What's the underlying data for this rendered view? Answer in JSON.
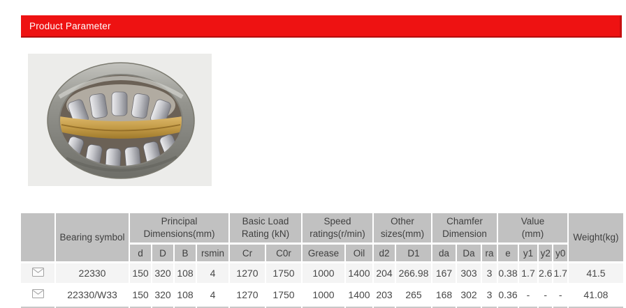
{
  "header": {
    "title": "Product Parameter"
  },
  "colors": {
    "accent_red": "#ee1212",
    "accent_red_border": "#b30d0d",
    "header_cell_gray": "#c1c1c1",
    "row_odd_bg": "#f4f4f4",
    "row_even_bg": "#ffffff",
    "photo_bg": "#ececea"
  },
  "product_image": {
    "name": "spherical-roller-bearing-photo"
  },
  "table": {
    "corner_label": "",
    "bearing_symbol_label": "Bearing symbol",
    "weight_label": "Weight(kg)",
    "groups": [
      {
        "label": "Principal\nDimensions(mm)",
        "cols": [
          "d",
          "D",
          "B",
          "rsmin"
        ]
      },
      {
        "label": "Basic Load\nRating (kN)",
        "cols": [
          "Cr",
          "C0r"
        ]
      },
      {
        "label": "Speed\nratings(r/min)",
        "cols": [
          "Grease",
          "Oil"
        ]
      },
      {
        "label": "Other\nsizes(mm)",
        "cols": [
          "d2",
          "D1"
        ]
      },
      {
        "label": "Chamfer\nDimension",
        "cols": [
          "da",
          "Da",
          "ra"
        ]
      },
      {
        "label": "Value\n(mm)",
        "cols": [
          "e",
          "y1",
          "y2",
          "y0"
        ]
      }
    ],
    "rows": [
      {
        "icon": "mail-icon",
        "bearing_symbol": "22330",
        "values": [
          "150",
          "320",
          "108",
          "4",
          "1270",
          "1750",
          "1000",
          "1400",
          "204",
          "266.98",
          "167",
          "303",
          "3",
          "0.38",
          "1.7",
          "2.6",
          "1.7"
        ],
        "weight": "41.5"
      },
      {
        "icon": "mail-icon",
        "bearing_symbol": "22330/W33",
        "values": [
          "150",
          "320",
          "108",
          "4",
          "1270",
          "1750",
          "1000",
          "1400",
          "203",
          "265",
          "168",
          "302",
          "3",
          "0.36",
          "-",
          "-",
          "-"
        ],
        "weight": "41.08"
      }
    ]
  }
}
